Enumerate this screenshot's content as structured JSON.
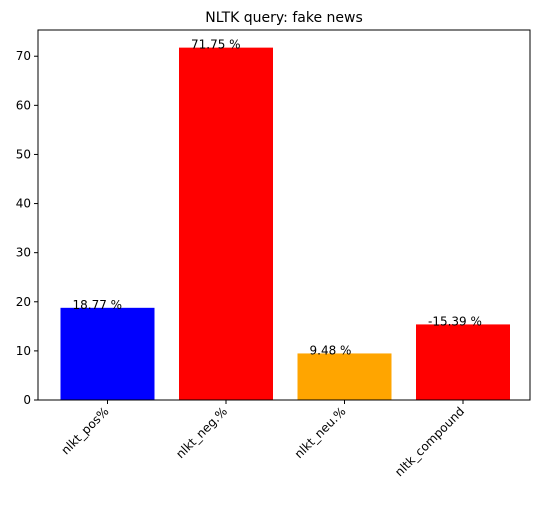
{
  "chart_data": {
    "type": "bar",
    "title": "NLTK query: fake news",
    "xlabel": "",
    "ylabel": "",
    "categories": [
      "nlkt_pos%",
      "nlkt_neg.%",
      "nlkt_neu.%",
      "nltk_compound"
    ],
    "values": [
      18.77,
      71.75,
      9.48,
      15.39
    ],
    "data_labels": [
      "18.77 %",
      "71.75 %",
      "9.48 %",
      "-15.39 %"
    ],
    "colors": [
      "#0000ff",
      "#ff0000",
      "#ffa500",
      "#ff0000"
    ],
    "ylim": [
      0,
      75.34
    ],
    "yticks": [
      0,
      10,
      20,
      30,
      40,
      50,
      60,
      70
    ],
    "grid": false,
    "xtick_rotation": 45
  }
}
